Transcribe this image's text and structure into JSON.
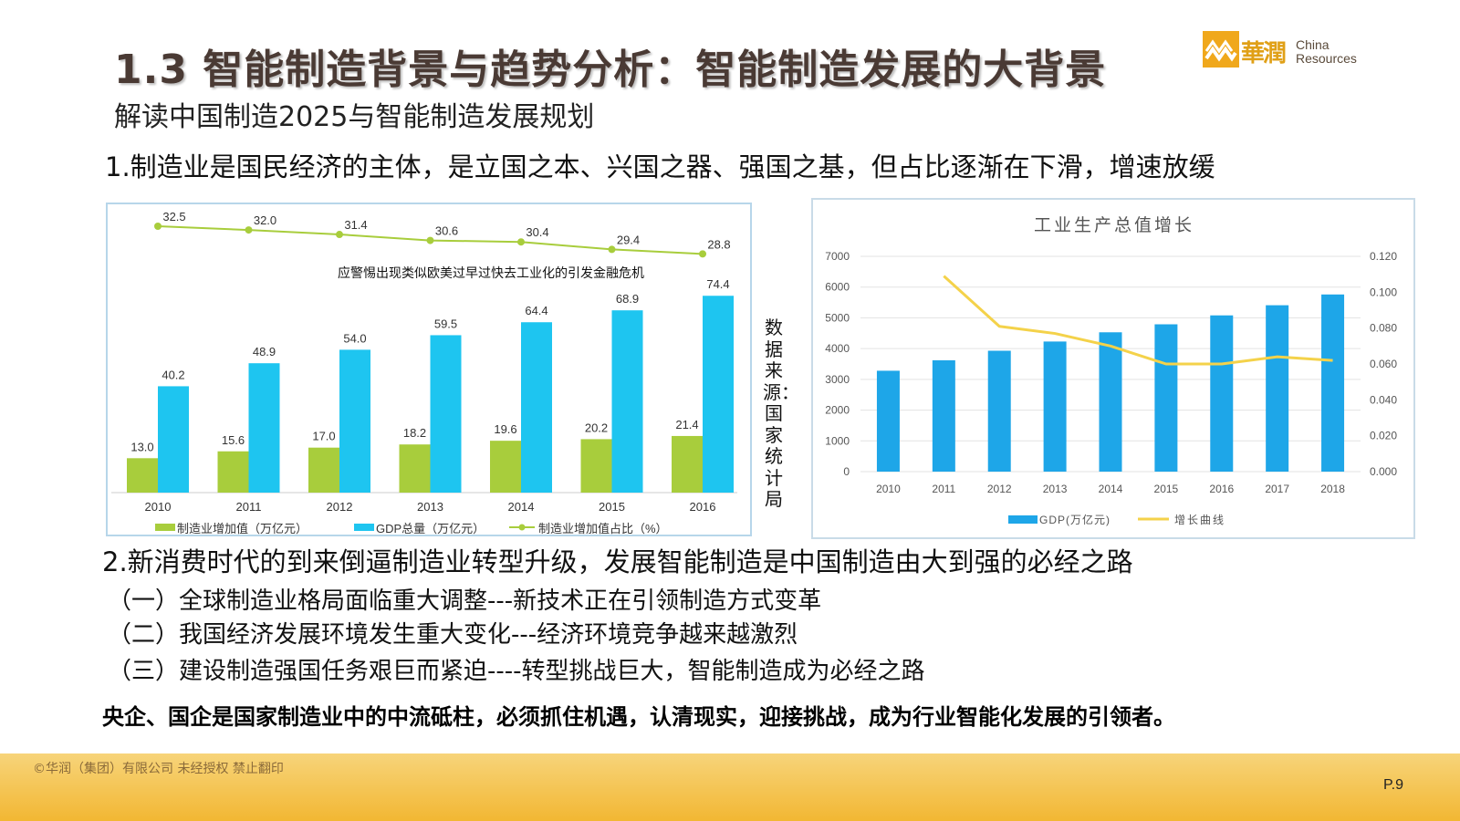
{
  "slide": {
    "title": "1.3 智能制造背景与趋势分析：智能制造发展的大背景",
    "subtitle": "解读中国制造2025与智能制造发展规划",
    "point1": "1.制造业是国民经济的主体，是立国之本、兴国之器、强国之基，但占比逐渐在下滑，增速放缓",
    "source_text": "数据来源：国家统计局",
    "point2": "2.新消费时代的到来倒逼制造业转型升级，发展智能制造是中国制造由大到强的必经之路",
    "sub1": "（一）全球制造业格局面临重大调整---新技术正在引领制造方式变革",
    "sub2": "（二）我国经济发展环境发生重大变化---经济环境竞争越来越激烈",
    "sub3": "（三）建设制造强国任务艰巨而紧迫----转型挑战巨大，智能制造成为必经之路",
    "conclusion": "央企、国企是国家制造业中的中流砥柱，必须抓住机遇，认清现实，迎接挑战，成为行业智能化发展的引领者。",
    "copyright": "©华润（集团）有限公司  未经授权  禁止翻印",
    "page_number": "P.9"
  },
  "logo": {
    "cn": "華潤",
    "en_line1": "China",
    "en_line2": "Resources"
  },
  "colors": {
    "title": "#4a3a34",
    "bar_green": "#a8cd3c",
    "bar_cyan": "#1ec5f0",
    "line_green": "#a8cd3c",
    "bar_blue": "#1ea6e8",
    "line_yellow": "#f4d24a",
    "logo_orange": "#f0a81c",
    "footer": "#f2b733"
  },
  "chart_data": [
    {
      "type": "bar",
      "categories": [
        "2010",
        "2011",
        "2012",
        "2013",
        "2014",
        "2015",
        "2016"
      ],
      "series": [
        {
          "name": "制造业增加值（万亿元）",
          "values": [
            13.0,
            15.6,
            17.0,
            18.2,
            19.6,
            20.2,
            21.4
          ],
          "labels": [
            "13.0",
            "15.6",
            "17.0",
            "18.2",
            "19.6",
            "20.2",
            "21.4"
          ]
        },
        {
          "name": "GDP总量（万亿元）",
          "values": [
            40.2,
            48.9,
            54.0,
            59.5,
            64.4,
            68.9,
            74.4
          ],
          "labels": [
            "40.2",
            "48.9",
            "54.0",
            "59.5",
            "64.4",
            "68.9",
            "74.4"
          ]
        },
        {
          "name": "制造业增加值占比（%）",
          "type": "line",
          "values": [
            32.5,
            32.0,
            31.4,
            30.6,
            30.4,
            29.4,
            28.8
          ],
          "labels": [
            "32.5",
            "32.0",
            "31.4",
            "30.6",
            "30.4",
            "29.4",
            "28.8"
          ]
        }
      ],
      "annotation": "应警惕出现类似欧美过早过快去工业化的引发金融危机",
      "legend": "bottom"
    },
    {
      "type": "bar",
      "title": "工业生产总值增长",
      "categories": [
        "2010",
        "2011",
        "2012",
        "2013",
        "2014",
        "2015",
        "2016",
        "2017",
        "2018"
      ],
      "ylim": [
        0,
        7000
      ],
      "y2lim": [
        0,
        0.12
      ],
      "yticks": [
        "7000",
        "6000",
        "5000",
        "4000",
        "3000",
        "2000",
        "1000",
        "0"
      ],
      "y2ticks": [
        "0.120",
        "0.100",
        "0.080",
        "0.060",
        "0.040",
        "0.020",
        "0.000"
      ],
      "series": [
        {
          "name": "GDP(万亿元)",
          "values": [
            3280,
            3620,
            3930,
            4230,
            4530,
            4790,
            5080,
            5410,
            5760
          ]
        },
        {
          "name": "增长曲线",
          "type": "line",
          "axis": "right",
          "x": [
            "2011",
            "2012",
            "2013",
            "2014",
            "2015",
            "2016",
            "2017",
            "2018"
          ],
          "values": [
            0.109,
            0.081,
            0.077,
            0.07,
            0.06,
            0.06,
            0.064,
            0.062
          ]
        }
      ],
      "grid": true,
      "legend": "bottom"
    }
  ]
}
